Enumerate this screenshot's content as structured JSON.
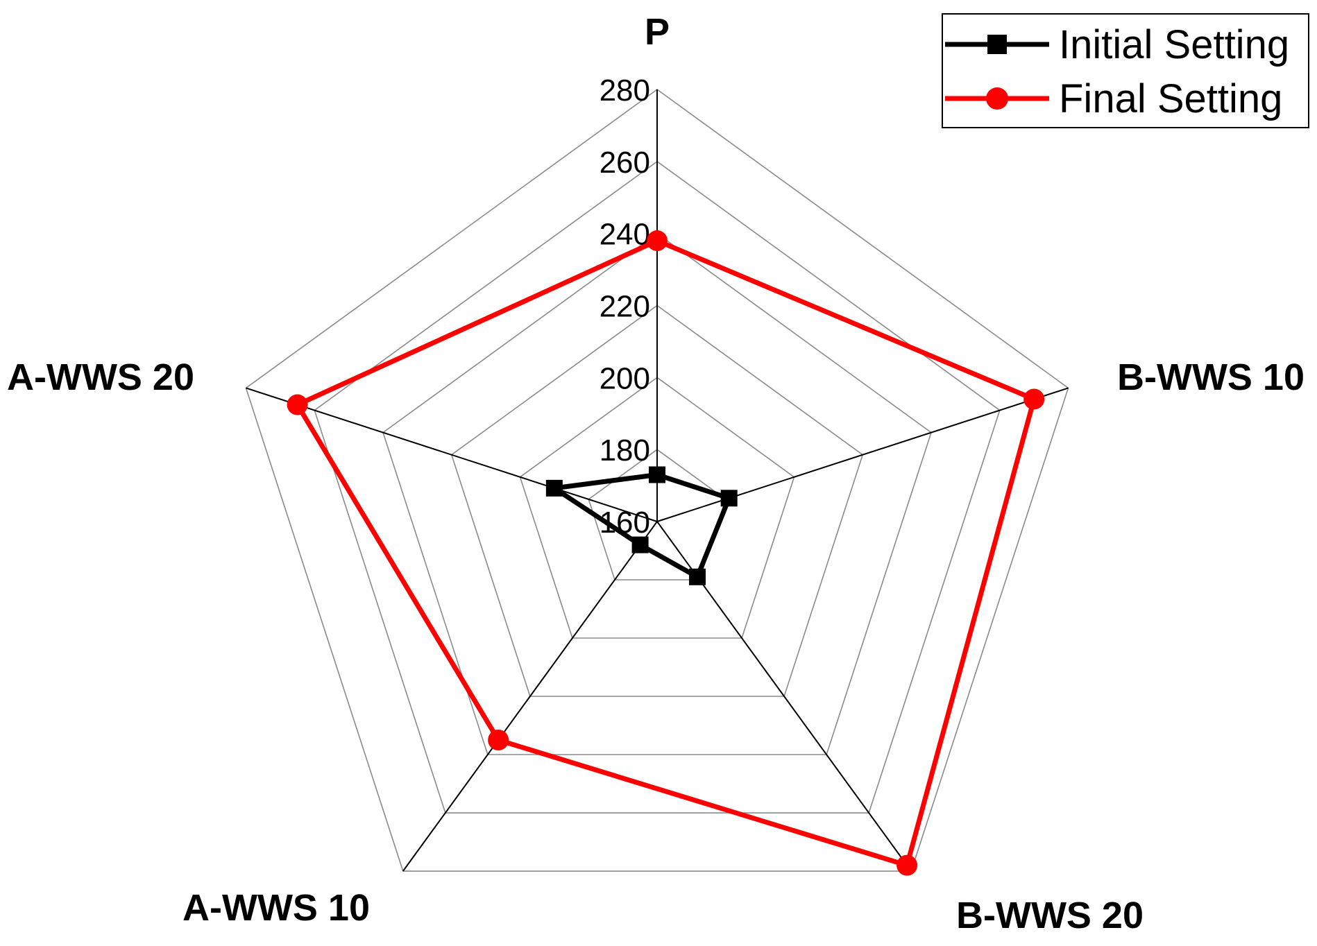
{
  "chart_data": {
    "type": "radar",
    "axes": [
      "P",
      "B-WWS 10",
      "B-WWS 20",
      "A-WWS 10",
      "A-WWS 20"
    ],
    "rlim": [
      160,
      280
    ],
    "ticks": [
      160,
      180,
      200,
      220,
      240,
      260,
      280
    ],
    "tick_labels": [
      "160",
      "180",
      "200",
      "220",
      "240",
      "260",
      "280"
    ],
    "grid": true,
    "legend_position": "top-right",
    "series": [
      {
        "name": "Initial Setting",
        "color": "#000000",
        "marker": "square",
        "values": [
          173,
          181,
          179,
          168,
          190
        ]
      },
      {
        "name": "Final Setting",
        "color": "#ff0000",
        "marker": "circle",
        "values": [
          238,
          270,
          278,
          235,
          265
        ]
      }
    ]
  }
}
